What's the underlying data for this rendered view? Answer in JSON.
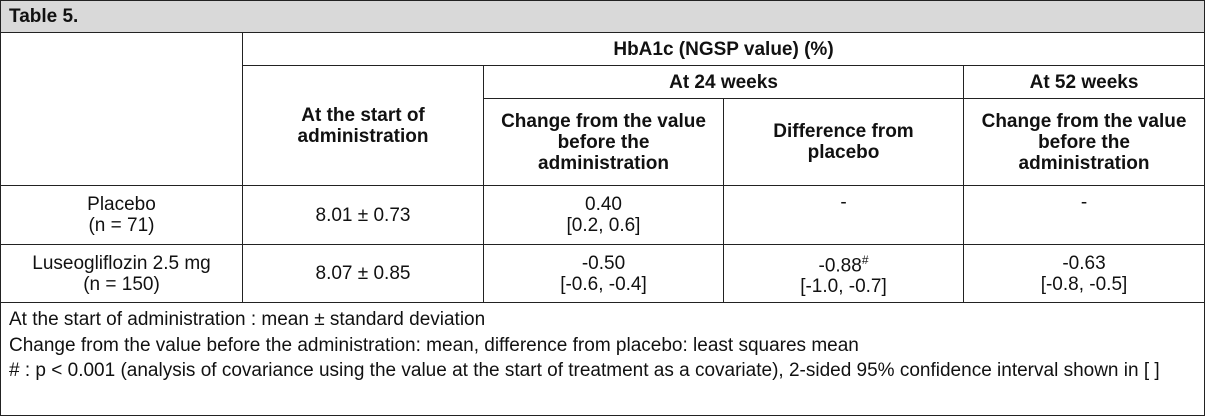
{
  "title": "Table 5.",
  "header": {
    "group": "HbA1c (NGSP value) (%)",
    "start": "At the start of administration",
    "week24": "At 24 weeks",
    "week52": "At 52 weeks",
    "change24": "Change from the value before the administration",
    "diff24": "Difference from placebo",
    "change52": "Change from the value before the administration"
  },
  "rows": [
    {
      "group": "Placebo",
      "n": "(n = 71)",
      "start": "8.01 ± 0.73",
      "change24": "0.40",
      "change24_ci": "[0.2, 0.6]",
      "diff24": "-",
      "change52": "-"
    },
    {
      "group": "Luseogliflozin 2.5 mg",
      "n": "(n = 150)",
      "start": "8.07 ± 0.85",
      "change24": "-0.50",
      "change24_ci": "[-0.6, -0.4]",
      "diff24": "-0.88",
      "diff24_mark": "#",
      "diff24_ci": "[-1.0, -0.7]",
      "change52": "-0.63",
      "change52_ci": "[-0.8, -0.5]"
    }
  ],
  "notes": [
    "At the start of administration : mean ± standard deviation",
    "Change from the value before the administration: mean, difference from placebo: least squares mean",
    "# : p < 0.001 (analysis of covariance using the value at the start of treatment as a covariate), 2-sided 95% confidence interval shown in [  ]"
  ]
}
